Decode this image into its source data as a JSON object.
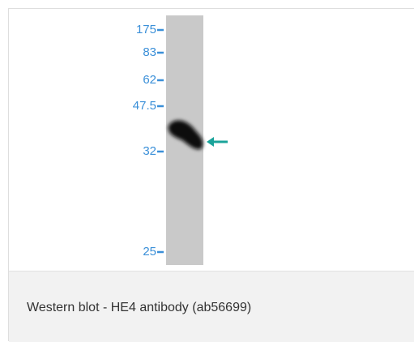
{
  "figure": {
    "markers": [
      "175",
      "83",
      "62",
      "47.5",
      "32",
      "25"
    ],
    "caption": "Western blot - HE4 antibody (ab56699)"
  }
}
